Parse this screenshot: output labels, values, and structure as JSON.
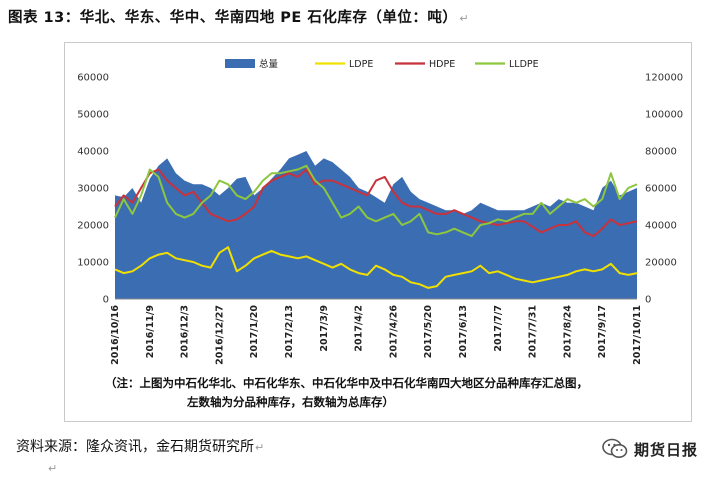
{
  "page": {
    "figure_title": "图表 13：华北、华东、华中、华南四地 PE 石化库存（单位：吨）",
    "paragraph_mark": "↵",
    "source": "资料来源：隆众资讯，金石期货研究所",
    "logo_text": "期货日报"
  },
  "chart_data": {
    "type": "area+line",
    "legend_position": "top",
    "grid": false,
    "x_tick_labels": [
      "2016/10/16",
      "2016/11/9",
      "2016/12/3",
      "2016/12/27",
      "2017/1/20",
      "2017/2/13",
      "2017/3/9",
      "2017/4/2",
      "2017/4/26",
      "2017/5/20",
      "2017/6/13",
      "2017/7/7",
      "2017/7/31",
      "2017/8/24",
      "2017/9/17",
      "2017/10/11"
    ],
    "x_tick_index": [
      0,
      4,
      8,
      12,
      16,
      20,
      24,
      28,
      32,
      36,
      40,
      44,
      48,
      52,
      56,
      60
    ],
    "y_left": {
      "range": [
        0,
        60000
      ],
      "ticks": [
        0,
        10000,
        20000,
        30000,
        40000,
        50000,
        60000
      ]
    },
    "y_right": {
      "range": [
        0,
        120000
      ],
      "ticks": [
        0,
        20000,
        40000,
        60000,
        80000,
        100000,
        120000
      ]
    },
    "series": [
      {
        "name": "总量",
        "axis": "right",
        "kind": "area",
        "color": "#3b6db3",
        "values": [
          56000,
          55000,
          60000,
          52000,
          65000,
          72000,
          76000,
          68000,
          64000,
          62000,
          62000,
          60000,
          56000,
          60000,
          65000,
          66000,
          56000,
          60000,
          65000,
          70000,
          76000,
          78000,
          80000,
          72000,
          76000,
          74000,
          70000,
          66000,
          60000,
          58000,
          55000,
          52000,
          62000,
          66000,
          58000,
          54000,
          52000,
          50000,
          48000,
          48000,
          46000,
          48000,
          52000,
          50000,
          48000,
          48000,
          48000,
          48000,
          50000,
          52000,
          50000,
          54000,
          52000,
          52000,
          50000,
          48000,
          60000,
          64000,
          56000,
          58000,
          60000
        ]
      },
      {
        "name": "LDPE",
        "axis": "left",
        "kind": "line",
        "color": "#f0e000",
        "values": [
          8000,
          7000,
          7500,
          9000,
          11000,
          12000,
          12500,
          11000,
          10500,
          10000,
          9000,
          8500,
          12500,
          14000,
          7500,
          9000,
          11000,
          12000,
          13000,
          12000,
          11500,
          11000,
          11500,
          10500,
          9500,
          8500,
          9500,
          8000,
          7000,
          6500,
          9000,
          8000,
          6500,
          6000,
          4500,
          4000,
          3000,
          3500,
          6000,
          6500,
          7000,
          7500,
          9000,
          7000,
          7500,
          6500,
          5500,
          5000,
          4500,
          5000,
          5500,
          6000,
          6500,
          7500,
          8000,
          7500,
          8000,
          9500,
          7000,
          6500,
          7000
        ]
      },
      {
        "name": "HDPE",
        "axis": "left",
        "kind": "line",
        "color": "#c8323c",
        "values": [
          25000,
          28000,
          26000,
          30000,
          34000,
          35000,
          32000,
          30000,
          28000,
          29000,
          26000,
          23000,
          22000,
          21000,
          21500,
          23000,
          25000,
          30000,
          32000,
          33000,
          34000,
          33000,
          35000,
          31000,
          32000,
          32000,
          31000,
          30000,
          29000,
          28000,
          32000,
          33000,
          29000,
          26000,
          25000,
          25000,
          24000,
          23000,
          23000,
          24000,
          23000,
          22000,
          21000,
          20500,
          20000,
          20500,
          21000,
          21000,
          19500,
          18000,
          19000,
          20000,
          20000,
          21000,
          18000,
          17000,
          19000,
          21500,
          20000,
          20500,
          21000
        ]
      },
      {
        "name": "LLDPE",
        "axis": "left",
        "kind": "line",
        "color": "#8dc63f",
        "values": [
          22000,
          27000,
          23000,
          28000,
          35000,
          33000,
          26000,
          23000,
          22000,
          23000,
          26000,
          28000,
          32000,
          31000,
          28000,
          27000,
          29000,
          32000,
          34000,
          34000,
          34500,
          35000,
          36000,
          32000,
          30000,
          26000,
          22000,
          23000,
          25000,
          22000,
          21000,
          22000,
          23000,
          20000,
          21000,
          23000,
          18000,
          17500,
          18000,
          19000,
          18000,
          17000,
          20000,
          20500,
          21500,
          21000,
          22000,
          23000,
          23000,
          26000,
          23000,
          25000,
          27000,
          26000,
          27000,
          25000,
          27000,
          34000,
          27000,
          30000,
          31000
        ]
      }
    ],
    "annotation": [
      "（注：上图为中石化华北、中石化华东、中石化华中及中石化华南四大地区分品种库存汇总图，",
      "左数轴为分品种库存，右数轴为总库存）"
    ]
  }
}
